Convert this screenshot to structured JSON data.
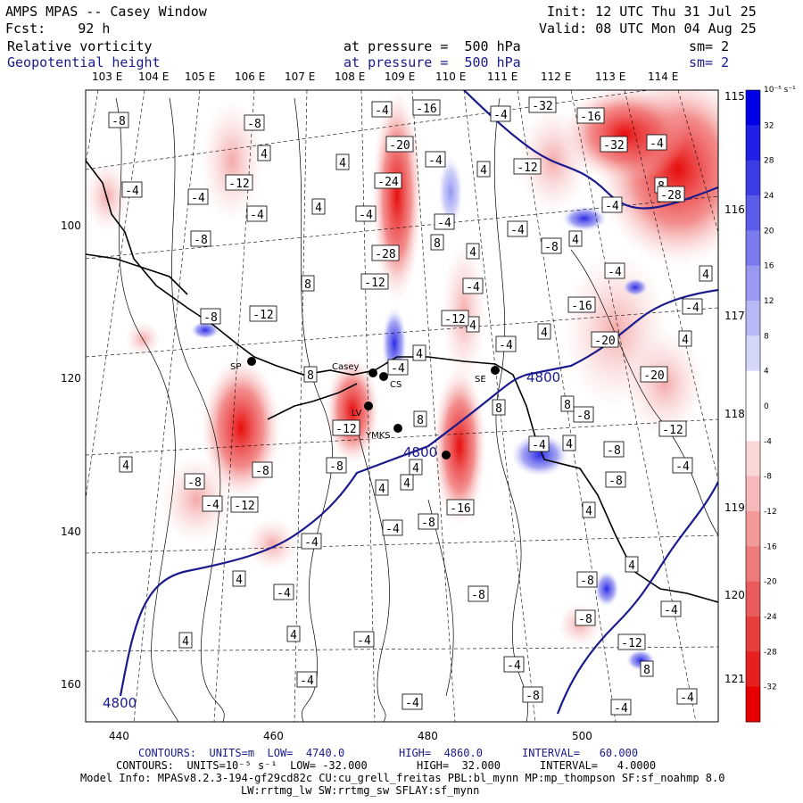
{
  "header": {
    "title": "AMPS MPAS -- Casey Window",
    "forecast": "Fcst:    92 h",
    "init": "Init: 12 UTC Thu 31 Jul 25",
    "valid": "Valid: 08 UTC Mon 04 Aug 25",
    "field1": {
      "name": "Relative vorticity",
      "pressure": "at pressure =  500 hPa",
      "sm": "sm= 2"
    },
    "field2": {
      "name": "Geopotential height",
      "pressure": "at pressure =  500 hPa",
      "sm": "sm= 2"
    }
  },
  "lon_labels_top": [
    "103 E",
    "104 E",
    "105 E",
    "106 E",
    "107 E",
    "108 E",
    "109 E",
    "110 E",
    "111 E",
    "112 E",
    "113 E",
    "114 E",
    "115 E"
  ],
  "lon_labels_right": [
    "116 E",
    "117 E",
    "118 E",
    "119 E",
    "120 E",
    "121 E"
  ],
  "x_ticks": [
    "440",
    "460",
    "480",
    "500"
  ],
  "y_ticks": [
    "100",
    "120",
    "140",
    "160"
  ],
  "colorbar": {
    "unit": "10⁻⁵ s⁻¹",
    "labels": [
      "32",
      "28",
      "24",
      "20",
      "16",
      "12",
      "8",
      "4",
      "0",
      "-4",
      "-8",
      "-12",
      "-16",
      "-20",
      "-24",
      "-28",
      "-32"
    ],
    "colors": [
      "#0000e6",
      "#1f1fe6",
      "#3d3de6",
      "#5c5cea",
      "#7b7bee",
      "#9999f2",
      "#b8b8f6",
      "#d6d6fa",
      "#ffffff",
      "#ffffff",
      "#fad6d6",
      "#f6b8b8",
      "#f29999",
      "#ee7b7b",
      "#ea5c5c",
      "#e63d3d",
      "#e61f1f",
      "#e60000"
    ]
  },
  "stations": [
    "SP",
    "Casey",
    "CS",
    "LV",
    "YMKS",
    "SE"
  ],
  "contour_labels_blue": [
    "4800",
    "4800",
    "4800"
  ],
  "vort_labels": [
    "-8",
    "-8",
    "4",
    "-4",
    "-12",
    "-4",
    "-4",
    "4",
    "-8",
    "-16",
    "-20",
    "-24",
    "-4",
    "-28",
    "4",
    "-32",
    "-16",
    "-32",
    "-4",
    "8",
    "-12",
    "-28",
    "-4",
    "4",
    "-12",
    "-8",
    "8",
    "4",
    "-4",
    "-4",
    "-4",
    "-12",
    "8",
    "4",
    "-4",
    "4",
    "-16",
    "-20",
    "-12",
    "4",
    "-8",
    "-12",
    "-8",
    "8",
    "4",
    "-4",
    "8",
    "-12",
    "-8",
    "8",
    "4",
    "4",
    "-20",
    "-4",
    "-4",
    "-8",
    "4",
    "8",
    "-4",
    "4",
    "-4",
    "-8",
    "-8",
    "4",
    "4",
    "-4",
    "-4",
    "-8",
    "4",
    "-8",
    "4",
    "-8",
    "4",
    "-4",
    "-4",
    "4",
    "-4",
    "-4",
    "-4",
    "-8",
    "-4",
    "-4",
    "8",
    "-4",
    "-12",
    "-8",
    "4",
    "-4",
    "-4",
    "-16",
    "-8",
    "-4",
    "-12",
    "4",
    "-4"
  ],
  "footer": {
    "line1_a": "CONTOURS:  UNITS=m  LOW=  4740.0",
    "line1_b": "HIGH=  4860.0",
    "line1_c": "INTERVAL=   60.000",
    "line2_a": "CONTOURS:  UNITS=10⁻⁵ s⁻¹  LOW= -32.000",
    "line2_b": "HIGH=  32.000",
    "line2_c": "INTERVAL=   4.0000",
    "model_info": "Model Info: MPASv8.2.3-194-gf29cd82c CU:cu_grell_freitas PBL:bl_mynn MP:mp_thompson SF:sf_noahmp 8.0",
    "model_info2": "LW:rrtmg_lw SW:rrtmg_sw SFLAY:sf_mynn"
  }
}
